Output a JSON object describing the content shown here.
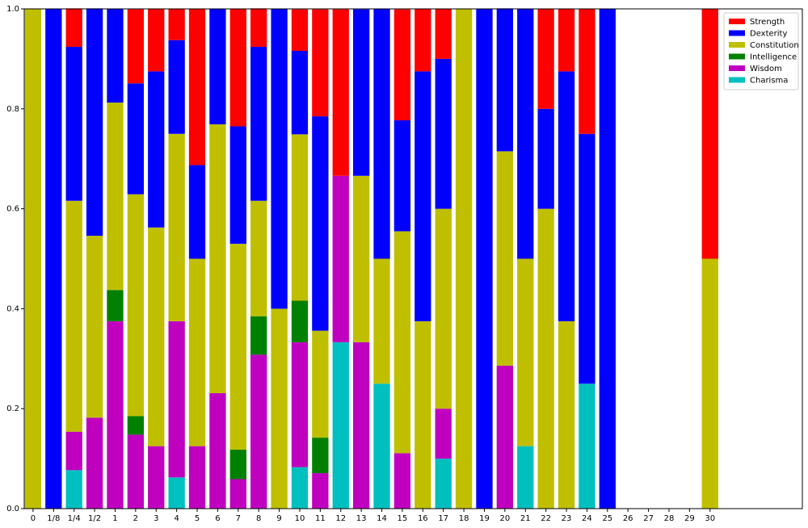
{
  "chart_data": {
    "type": "stacked_bar",
    "categories": [
      "0",
      "1/8",
      "1/4",
      "1/2",
      "1",
      "2",
      "3",
      "4",
      "5",
      "6",
      "7",
      "8",
      "9",
      "10",
      "11",
      "12",
      "13",
      "14",
      "15",
      "16",
      "17",
      "18",
      "19",
      "20",
      "21",
      "22",
      "23",
      "24",
      "25",
      "26",
      "27",
      "28",
      "29",
      "30"
    ],
    "series": [
      {
        "name": "Strength",
        "color": "#ff0000",
        "values": [
          0,
          0,
          0.077,
          0,
          0,
          0.148,
          0.125,
          0.0625,
          0.3125,
          0,
          0.235,
          0.077,
          0,
          0.083,
          0.214,
          0.333,
          0,
          0,
          0.222,
          0.125,
          0.1,
          0,
          0,
          0,
          0,
          0.2,
          0.125,
          0.25,
          0,
          0,
          0,
          0,
          0,
          0.5
        ]
      },
      {
        "name": "Dexterity",
        "color": "#0000ff",
        "values": [
          0,
          1,
          0.308,
          0.455,
          0.1875,
          0.222,
          0.3125,
          0.1875,
          0.1875,
          0.231,
          0.235,
          0.308,
          0.6,
          0.167,
          0.429,
          0,
          0.333,
          0.5,
          0.222,
          0.5,
          0.3,
          0,
          1,
          0.286,
          0.5,
          0.2,
          0.5,
          0.5,
          1,
          0,
          0,
          0,
          0,
          0
        ]
      },
      {
        "name": "Constitution",
        "color": "#bfbf00",
        "values": [
          1,
          0,
          0.462,
          0.364,
          0.375,
          0.444,
          0.4375,
          0.375,
          0.375,
          0.538,
          0.412,
          0.231,
          0.4,
          0.333,
          0.214,
          0,
          0.333,
          0.25,
          0.444,
          0.375,
          0.4,
          1,
          0,
          0.429,
          0.375,
          0.6,
          0.375,
          0,
          0,
          0,
          0,
          0,
          0,
          0.5
        ]
      },
      {
        "name": "Intelligence",
        "color": "#008000",
        "values": [
          0,
          0,
          0,
          0,
          0.0625,
          0.037,
          0,
          0,
          0,
          0,
          0.059,
          0.077,
          0,
          0.083,
          0.071,
          0,
          0,
          0,
          0,
          0,
          0,
          0,
          0,
          0,
          0,
          0,
          0,
          0,
          0,
          0,
          0,
          0,
          0,
          0
        ]
      },
      {
        "name": "Wisdom",
        "color": "#bf00bf",
        "values": [
          0,
          0,
          0.077,
          0.182,
          0.375,
          0.148,
          0.125,
          0.3125,
          0.125,
          0.231,
          0.059,
          0.308,
          0,
          0.25,
          0.071,
          0.333,
          0.333,
          0,
          0.111,
          0,
          0.1,
          0,
          0,
          0.286,
          0,
          0,
          0,
          0,
          0,
          0,
          0,
          0,
          0,
          0
        ]
      },
      {
        "name": "Charisma",
        "color": "#00bfbf",
        "values": [
          0,
          0,
          0.077,
          0,
          0,
          0,
          0,
          0.0625,
          0,
          0,
          0,
          0,
          0,
          0.083,
          0,
          0.333,
          0,
          0.25,
          0,
          0,
          0.1,
          0,
          0,
          0,
          0.125,
          0,
          0,
          0.25,
          0,
          0,
          0,
          0,
          0,
          0
        ]
      }
    ],
    "ylim": [
      0,
      1
    ],
    "yticks": [
      {
        "value": 0,
        "label": "0.0"
      },
      {
        "value": 0.2,
        "label": "0.2"
      },
      {
        "value": 0.4,
        "label": "0.4"
      },
      {
        "value": 0.6,
        "label": "0.6"
      },
      {
        "value": 0.8,
        "label": "0.8"
      },
      {
        "value": 1,
        "label": "1.0"
      }
    ],
    "legend": "upper right"
  }
}
